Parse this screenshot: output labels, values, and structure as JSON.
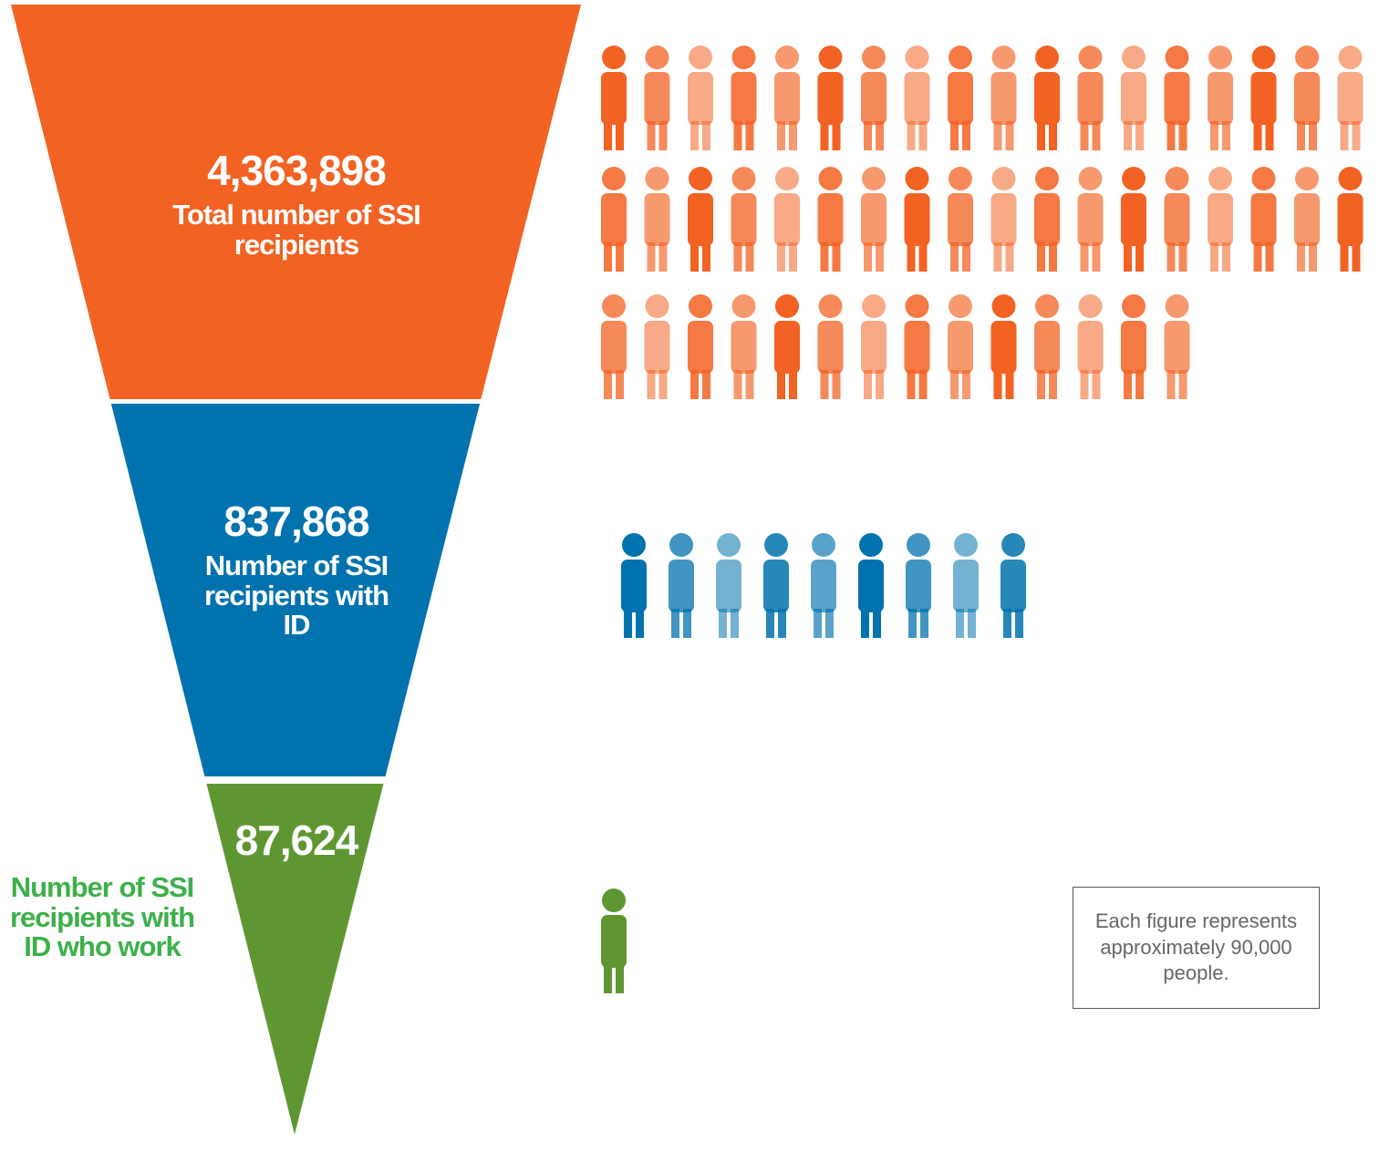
{
  "chart_data": {
    "type": "funnel",
    "categories": [
      "Total number of SSI recipients",
      "Number of SSI recipients with ID",
      "Number of SSI recipients with ID who work"
    ],
    "values": [
      4363898,
      837868,
      87624
    ],
    "value_labels": [
      "4,363,898",
      "837,868",
      "87,624"
    ],
    "colors": [
      "#f26222",
      "#0072ad",
      "#5e9732"
    ],
    "label_colors": [
      "#ffffff",
      "#ffffff",
      "#3cb04a"
    ],
    "figures": [
      50,
      9,
      1
    ],
    "note": "Each figure represents approximately 90,000 people."
  }
}
